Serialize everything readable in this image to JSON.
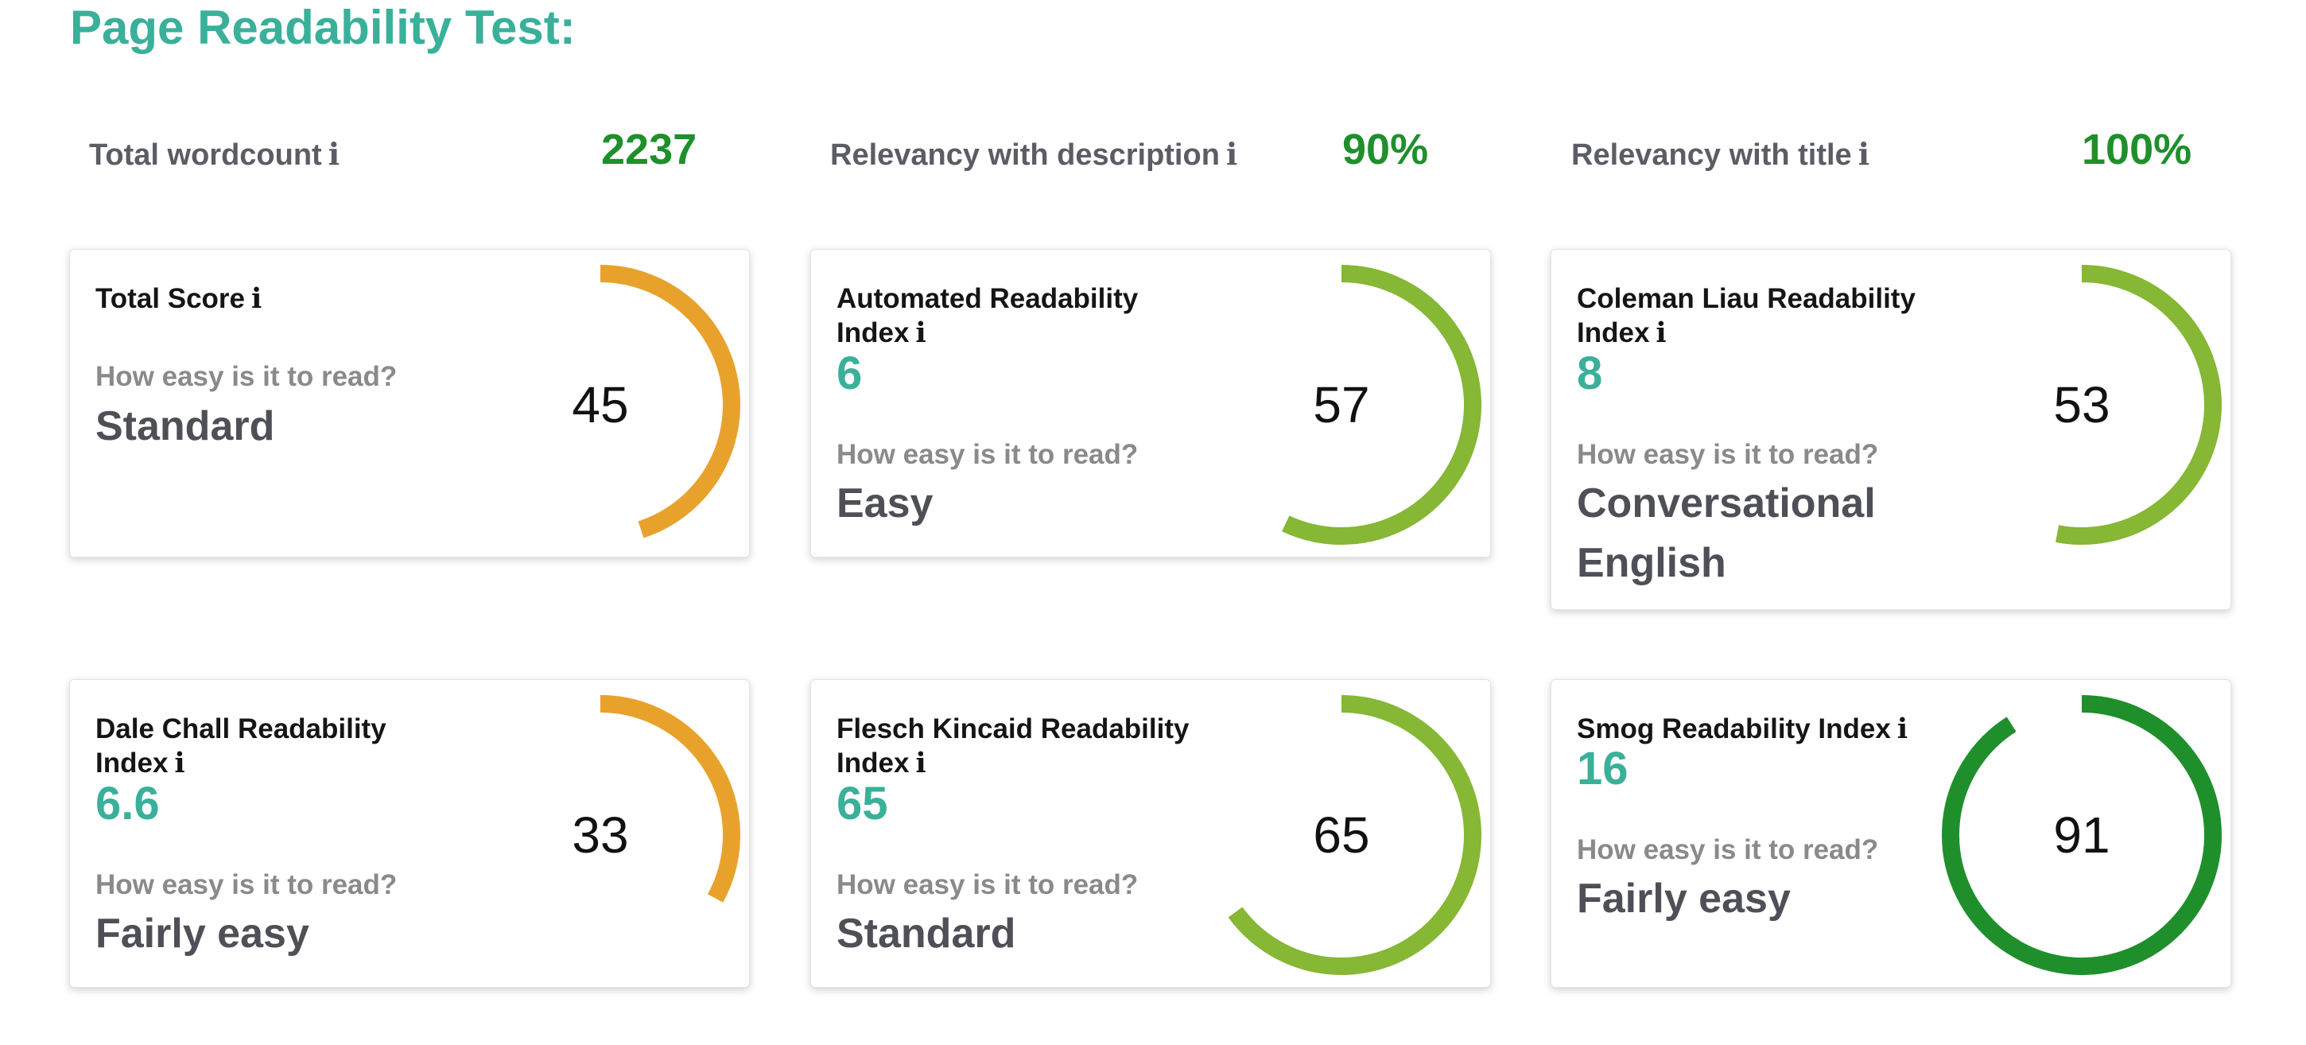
{
  "page_title": "Page Readability Test:",
  "info_glyph": "i",
  "metrics": {
    "wordcount": {
      "label": "Total wordcount",
      "value": "2237"
    },
    "description": {
      "label": "Relevancy with description",
      "value": "90%"
    },
    "title": {
      "label": "Relevancy with title",
      "value": "100%"
    }
  },
  "question": "How easy is it to read?",
  "colors": {
    "accent_teal": "#3ab09a",
    "value_green": "#1f8f2c",
    "gauge_orange": "#e8a22c",
    "gauge_lightgreen": "#86b735",
    "gauge_darkgreen": "#1f8f2c"
  },
  "cards": [
    {
      "title": "Total Score",
      "score": "",
      "level": "Standard",
      "gauge": 45,
      "gauge_fill_fraction": 0.45,
      "gauge_color": "#e8a22c"
    },
    {
      "title": "Automated Readability Index",
      "score": "6",
      "level": "Easy",
      "gauge": 57,
      "gauge_fill_fraction": 0.57,
      "gauge_color": "#86b735"
    },
    {
      "title": "Coleman Liau Readability Index",
      "score": "8",
      "level": "Conversational English",
      "gauge": 53,
      "gauge_fill_fraction": 0.53,
      "gauge_color": "#86b735"
    },
    {
      "title": "Dale Chall Readability Index",
      "score": "6.6",
      "level": "Fairly easy",
      "gauge": 33,
      "gauge_fill_fraction": 0.33,
      "gauge_color": "#e8a22c"
    },
    {
      "title": "Flesch Kincaid Readability Index",
      "score": "65",
      "level": "Standard",
      "gauge": 65,
      "gauge_fill_fraction": 0.65,
      "gauge_color": "#86b735"
    },
    {
      "title": "Smog Readability Index",
      "score": "16",
      "level": "Fairly easy",
      "gauge": 91,
      "gauge_fill_fraction": 0.91,
      "gauge_color": "#1f8f2c"
    }
  ]
}
